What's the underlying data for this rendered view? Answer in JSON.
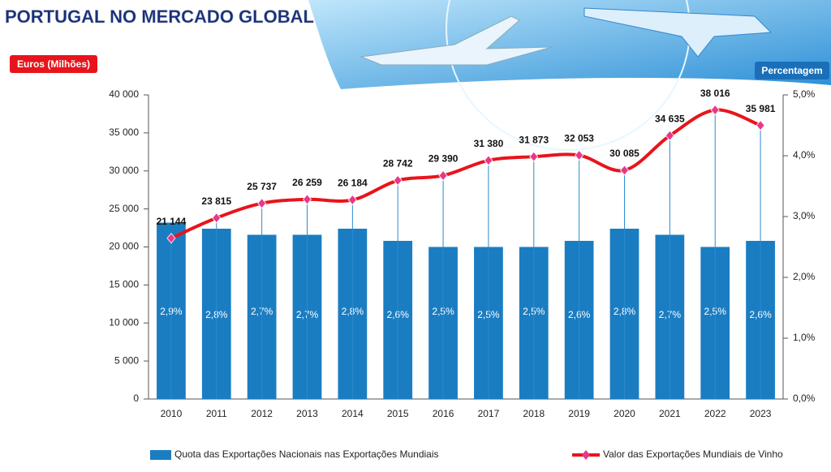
{
  "chart_data": {
    "type": "combo",
    "title": "PORTUGAL NO MERCADO GLOBAL",
    "y_label": "Euros (Milhões)",
    "y2_label": "Percentagem",
    "categories": [
      "2010",
      "2011",
      "2012",
      "2013",
      "2014",
      "2015",
      "2016",
      "2017",
      "2018",
      "2019",
      "2020",
      "2021",
      "2022",
      "2023"
    ],
    "series": [
      {
        "name": "Quota das Exportações Nacionais nas Exportações Mundiais",
        "type": "bar",
        "axis": "y2",
        "color": "#1b7dc1",
        "values": [
          2.9,
          2.8,
          2.7,
          2.7,
          2.8,
          2.6,
          2.5,
          2.5,
          2.5,
          2.6,
          2.8,
          2.7,
          2.5,
          2.6
        ],
        "value_labels": [
          "2,9%",
          "2,8%",
          "2,7%",
          "2,7%",
          "2,8%",
          "2,6%",
          "2,5%",
          "2,5%",
          "2,5%",
          "2,6%",
          "2,8%",
          "2,7%",
          "2,5%",
          "2,6%"
        ]
      },
      {
        "name": "Valor das Exportações Mundiais de Vinho",
        "type": "line",
        "axis": "y",
        "color": "#e8141c",
        "marker_color": "#e8388a",
        "values": [
          21144,
          23815,
          25737,
          26259,
          26184,
          28742,
          29390,
          31380,
          31873,
          32053,
          30085,
          34635,
          38016,
          35981
        ],
        "value_labels": [
          "21 144",
          "23 815",
          "25 737",
          "26 259",
          "26 184",
          "28 742",
          "29 390",
          "31 380",
          "31 873",
          "32 053",
          "30 085",
          "34 635",
          "38 016",
          "35 981"
        ]
      }
    ],
    "ylim": [
      0,
      40000
    ],
    "yticks": [
      0,
      {
        "value": 5000,
        "label": "5 000"
      },
      {
        "value": 10000,
        "label": "10 000"
      },
      {
        "value": 15000,
        "label": "15 000"
      },
      {
        "value": 20000,
        "label": "20 000"
      },
      {
        "value": 25000,
        "label": "25 000"
      },
      {
        "value": 30000,
        "label": "30 000"
      },
      {
        "value": 35000,
        "label": "35 000"
      },
      {
        "value": 40000,
        "label": "40 000"
      }
    ],
    "y2lim": [
      0,
      5
    ],
    "y2ticks": [
      {
        "value": 0,
        "label": "0,0%"
      },
      {
        "value": 1,
        "label": "1,0%"
      },
      {
        "value": 2,
        "label": "2,0%"
      },
      {
        "value": 3,
        "label": "3,0%"
      },
      {
        "value": 4,
        "label": "4,0%"
      },
      {
        "value": 5,
        "label": "5,0%"
      }
    ],
    "grid": false
  }
}
